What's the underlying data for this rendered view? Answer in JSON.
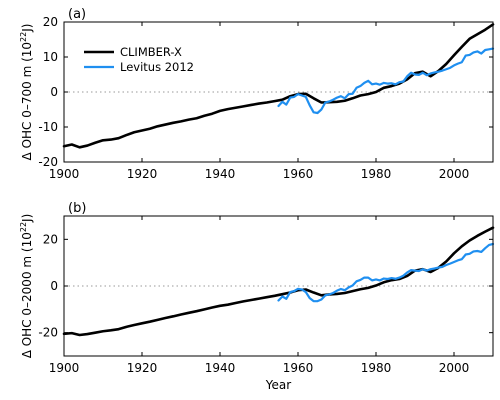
{
  "chart_data": [
    {
      "type": "line",
      "panel_label": "(a)",
      "xlabel": "",
      "ylabel": "Δ OHC 0–700 m (10²² J)",
      "ylabel_parts": {
        "prefix": "Δ OHC 0–700 m (10",
        "exp": "22",
        "suffix": "J)"
      },
      "xlim": [
        1900,
        2010
      ],
      "ylim": [
        -20,
        20
      ],
      "xticks": [
        1900,
        1920,
        1940,
        1960,
        1980,
        2000
      ],
      "yticks": [
        -20,
        -10,
        0,
        10,
        20
      ],
      "zero_line": "dotted",
      "legend_position": "top-left",
      "series": [
        {
          "name": "CLIMBER-X",
          "color": "#000000",
          "x": [
            1900,
            1902,
            1904,
            1906,
            1908,
            1910,
            1912,
            1914,
            1916,
            1918,
            1920,
            1922,
            1924,
            1926,
            1928,
            1930,
            1932,
            1934,
            1936,
            1938,
            1940,
            1942,
            1944,
            1946,
            1948,
            1950,
            1952,
            1954,
            1956,
            1958,
            1960,
            1962,
            1964,
            1966,
            1968,
            1970,
            1972,
            1974,
            1976,
            1978,
            1980,
            1982,
            1984,
            1986,
            1988,
            1990,
            1992,
            1994,
            1996,
            1998,
            2000,
            2002,
            2004,
            2006,
            2008,
            2010
          ],
          "y": [
            -15.5,
            -15.0,
            -15.8,
            -15.3,
            -14.5,
            -13.8,
            -13.6,
            -13.2,
            -12.3,
            -11.5,
            -11.0,
            -10.5,
            -9.8,
            -9.3,
            -8.8,
            -8.4,
            -7.9,
            -7.5,
            -6.8,
            -6.2,
            -5.4,
            -4.9,
            -4.5,
            -4.1,
            -3.7,
            -3.3,
            -3.0,
            -2.6,
            -2.2,
            -1.2,
            -0.6,
            -0.5,
            -1.8,
            -3.0,
            -2.9,
            -2.8,
            -2.5,
            -1.8,
            -1.0,
            -0.6,
            0.0,
            1.2,
            1.7,
            2.4,
            3.6,
            5.4,
            5.8,
            4.5,
            6.0,
            8.0,
            10.5,
            12.9,
            15.2,
            16.5,
            17.8,
            19.3
          ]
        },
        {
          "name": "Levitus 2012",
          "color": "#1f8ff0",
          "x": [
            1955,
            1956,
            1957,
            1958,
            1959,
            1960,
            1961,
            1962,
            1963,
            1964,
            1965,
            1966,
            1967,
            1968,
            1969,
            1970,
            1971,
            1972,
            1973,
            1974,
            1975,
            1976,
            1977,
            1978,
            1979,
            1980,
            1981,
            1982,
            1983,
            1984,
            1985,
            1986,
            1987,
            1988,
            1989,
            1990,
            1991,
            1992,
            1993,
            1994,
            1995,
            1996,
            1997,
            1998,
            1999,
            2000,
            2001,
            2002,
            2003,
            2004,
            2005,
            2006,
            2007,
            2008,
            2009,
            2010
          ],
          "y": [
            -4.0,
            -2.8,
            -3.6,
            -1.6,
            -1.4,
            -0.6,
            -1.0,
            -1.4,
            -3.8,
            -5.8,
            -6.0,
            -5.0,
            -3.0,
            -2.7,
            -2.2,
            -1.6,
            -1.2,
            -1.8,
            -0.6,
            -0.5,
            1.2,
            1.7,
            2.6,
            3.2,
            2.2,
            2.4,
            2.1,
            2.6,
            2.4,
            2.5,
            2.2,
            2.8,
            3.0,
            4.5,
            5.5,
            5.0,
            4.9,
            5.5,
            4.8,
            5.3,
            5.6,
            5.8,
            6.1,
            6.5,
            6.9,
            7.6,
            8.1,
            8.5,
            10.4,
            10.6,
            11.3,
            11.6,
            11.0,
            12.0,
            12.2,
            12.4
          ]
        }
      ]
    },
    {
      "type": "line",
      "panel_label": "(b)",
      "xlabel": "Year",
      "ylabel": "Δ OHC 0–2000 m (10²² J)",
      "ylabel_parts": {
        "prefix": "Δ OHC 0–2000 m (10",
        "exp": "22",
        "suffix": "J)"
      },
      "xlim": [
        1900,
        2010
      ],
      "ylim": [
        -30,
        30
      ],
      "xticks": [
        1900,
        1920,
        1940,
        1960,
        1980,
        2000
      ],
      "yticks": [
        -20,
        0,
        20
      ],
      "zero_line": "dotted",
      "series": [
        {
          "name": "CLIMBER-X",
          "color": "#000000",
          "x": [
            1900,
            1902,
            1904,
            1906,
            1908,
            1910,
            1912,
            1914,
            1916,
            1918,
            1920,
            1922,
            1924,
            1926,
            1928,
            1930,
            1932,
            1934,
            1936,
            1938,
            1940,
            1942,
            1944,
            1946,
            1948,
            1950,
            1952,
            1954,
            1956,
            1958,
            1960,
            1962,
            1964,
            1966,
            1968,
            1970,
            1972,
            1974,
            1976,
            1978,
            1980,
            1982,
            1984,
            1986,
            1988,
            1990,
            1992,
            1994,
            1996,
            1998,
            2000,
            2002,
            2004,
            2006,
            2008,
            2010
          ],
          "y": [
            -20.5,
            -20.2,
            -21.0,
            -20.6,
            -20.0,
            -19.4,
            -19.0,
            -18.5,
            -17.5,
            -16.7,
            -16.0,
            -15.3,
            -14.5,
            -13.7,
            -13.0,
            -12.2,
            -11.5,
            -10.8,
            -10.0,
            -9.2,
            -8.5,
            -8.0,
            -7.3,
            -6.6,
            -6.0,
            -5.4,
            -4.8,
            -4.2,
            -3.5,
            -2.8,
            -1.8,
            -1.5,
            -2.8,
            -4.0,
            -3.6,
            -3.4,
            -3.0,
            -2.2,
            -1.4,
            -0.8,
            0.2,
            1.6,
            2.5,
            3.0,
            4.3,
            6.6,
            7.2,
            6.0,
            7.8,
            10.5,
            14.0,
            17.0,
            19.5,
            21.5,
            23.3,
            25.0
          ]
        },
        {
          "name": "Levitus 2012",
          "color": "#1f8ff0",
          "x": [
            1955,
            1956,
            1957,
            1958,
            1959,
            1960,
            1961,
            1962,
            1963,
            1964,
            1965,
            1966,
            1967,
            1968,
            1969,
            1970,
            1971,
            1972,
            1973,
            1974,
            1975,
            1976,
            1977,
            1978,
            1979,
            1980,
            1981,
            1982,
            1983,
            1984,
            1985,
            1986,
            1987,
            1988,
            1989,
            1990,
            1991,
            1992,
            1993,
            1994,
            1995,
            1996,
            1997,
            1998,
            1999,
            2000,
            2001,
            2002,
            2003,
            2004,
            2005,
            2006,
            2007,
            2008,
            2009,
            2010
          ],
          "y": [
            -6.2,
            -4.5,
            -5.5,
            -2.6,
            -2.2,
            -1.2,
            -1.5,
            -2.6,
            -5.2,
            -6.5,
            -6.5,
            -5.8,
            -4.0,
            -3.6,
            -3.0,
            -2.0,
            -1.3,
            -1.8,
            -0.6,
            0.2,
            2.0,
            2.6,
            3.6,
            3.6,
            2.4,
            2.8,
            2.4,
            3.2,
            3.0,
            3.4,
            3.1,
            3.6,
            4.4,
            5.8,
            6.8,
            6.6,
            6.4,
            7.2,
            6.6,
            7.2,
            7.5,
            7.9,
            8.2,
            9.0,
            9.6,
            10.3,
            11.0,
            11.5,
            13.5,
            13.8,
            14.8,
            15.0,
            14.6,
            16.2,
            17.6,
            18.0
          ]
        }
      ]
    }
  ]
}
